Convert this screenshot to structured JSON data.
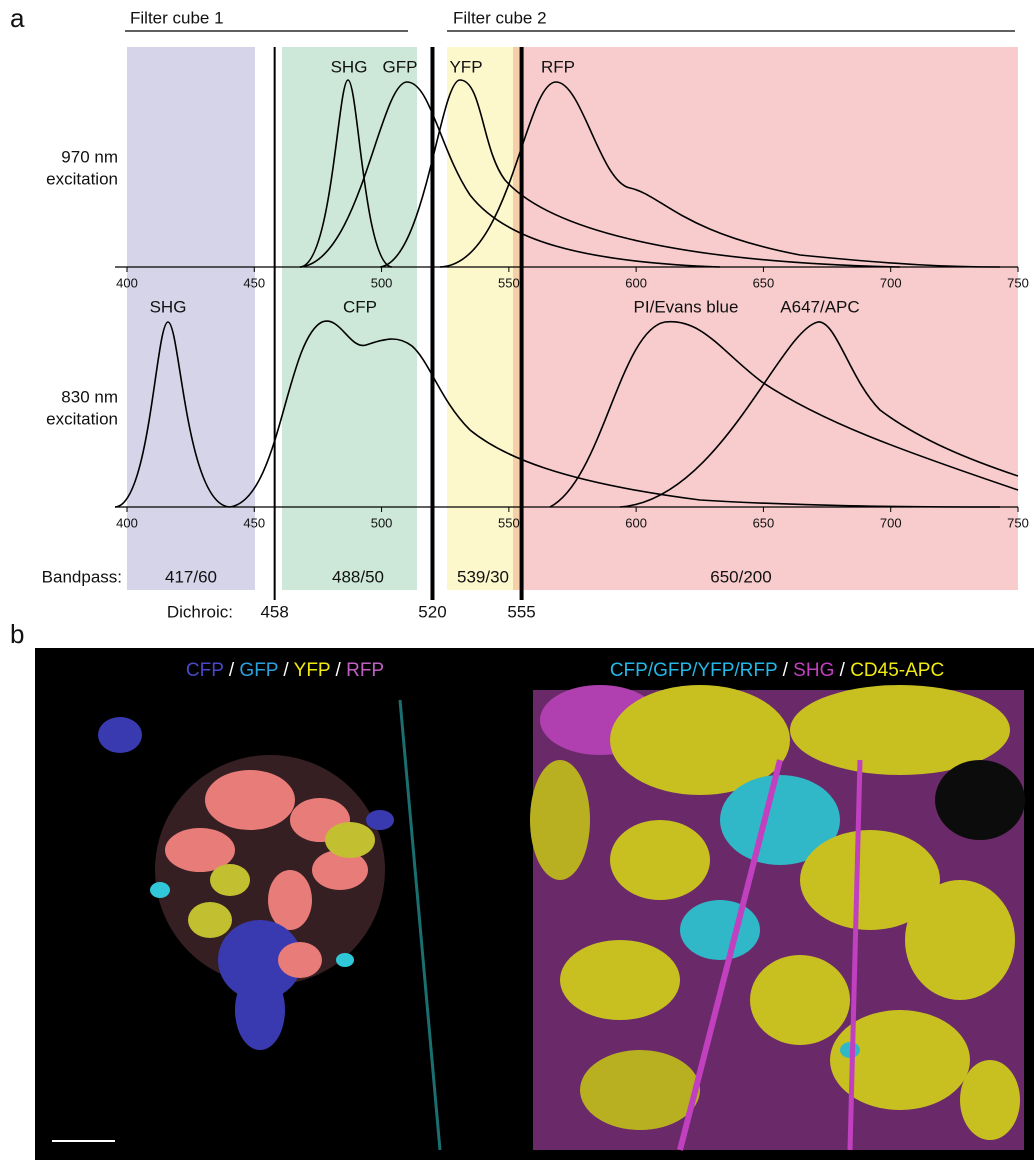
{
  "panel_a": {
    "label": "a",
    "filter_cubes": [
      "Filter cube 1",
      "Filter cube 2"
    ],
    "excitation_labels": [
      [
        "970 nm",
        "excitation"
      ],
      [
        "830 nm",
        "excitation"
      ]
    ],
    "top_peaks": [
      "SHG",
      "GFP",
      "YFP",
      "RFP"
    ],
    "bottom_peaks": [
      "SHG",
      "CFP",
      "PI/Evans blue",
      "A647/APC"
    ],
    "xlim": [
      400,
      750
    ],
    "xticks": [
      400,
      450,
      500,
      550,
      600,
      650,
      700,
      750
    ],
    "bandpass_label": "Bandpass:",
    "bandpass": [
      "417/60",
      "488/50",
      "539/30",
      "650/200"
    ],
    "dichroic_label": "Dichroic:",
    "dichroic": [
      458,
      520,
      555
    ]
  },
  "panel_b": {
    "label": "b",
    "left_legend": [
      {
        "text": "CFP",
        "color": "#4848c8"
      },
      {
        "text": " / ",
        "color": "#ffffff"
      },
      {
        "text": "GFP",
        "color": "#2aa0e0"
      },
      {
        "text": " / ",
        "color": "#ffffff"
      },
      {
        "text": "YFP",
        "color": "#f0ea10"
      },
      {
        "text": " / ",
        "color": "#ffffff"
      },
      {
        "text": "RFP",
        "color": "#c060c0"
      }
    ],
    "right_legend": [
      {
        "text": "CFP/GFP/YFP/RFP",
        "color": "#22b8e8"
      },
      {
        "text": " / ",
        "color": "#ffffff"
      },
      {
        "text": "SHG",
        "color": "#c040c0"
      },
      {
        "text": " / ",
        "color": "#ffffff"
      },
      {
        "text": "CD45-APC",
        "color": "#f0ea10"
      }
    ]
  }
}
